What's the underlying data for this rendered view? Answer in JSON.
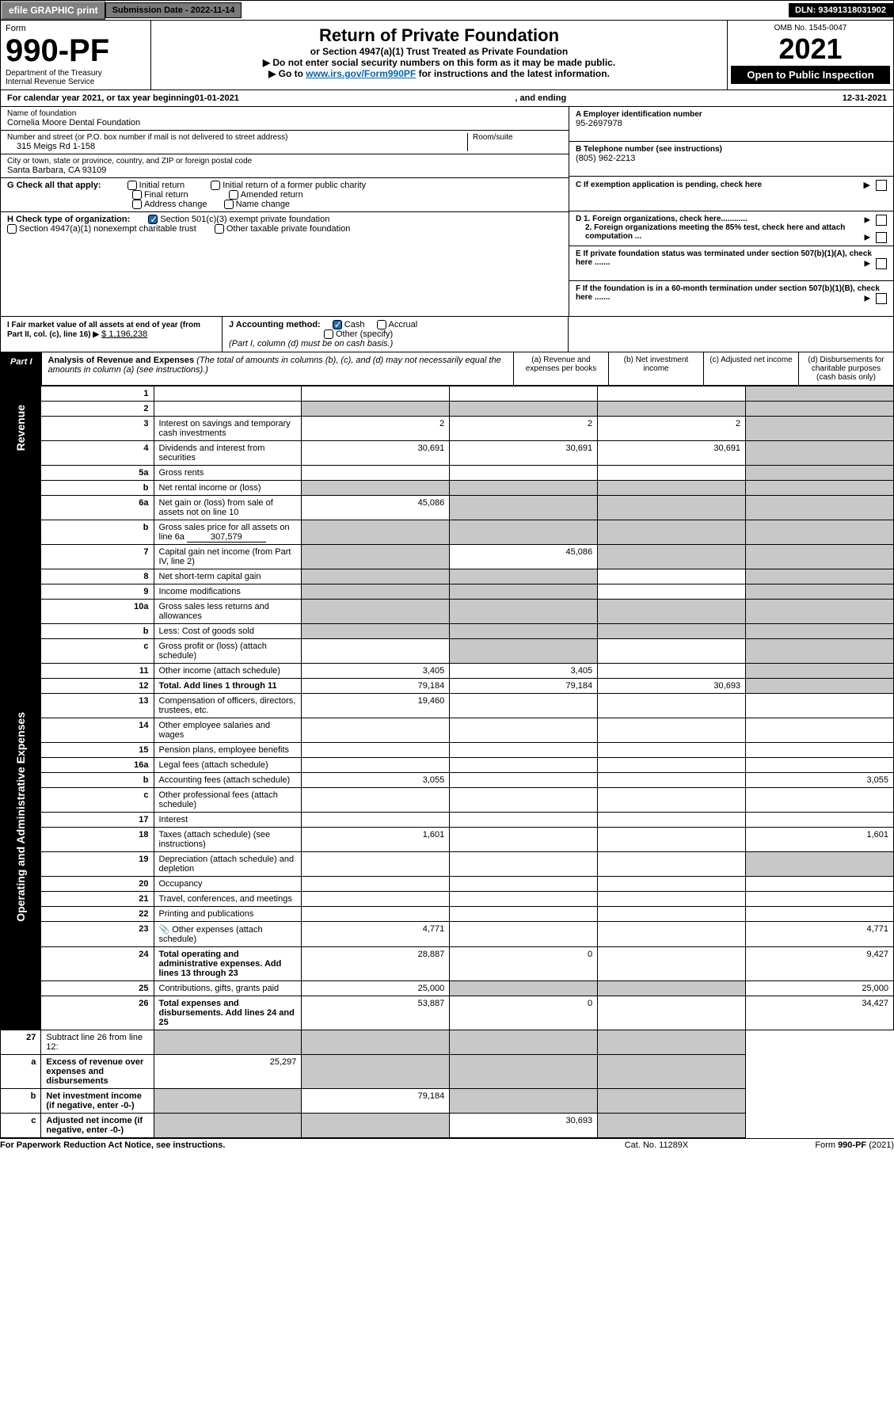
{
  "topbar": {
    "efile": "efile GRAPHIC print",
    "subdate_label": "Submission Date - ",
    "subdate": "2022-11-14",
    "dln_label": "DLN: ",
    "dln": "93491318031902"
  },
  "header": {
    "form_label": "Form",
    "form_no": "990-PF",
    "dept1": "Department of the Treasury",
    "dept2": "Internal Revenue Service",
    "title": "Return of Private Foundation",
    "subtitle": "or Section 4947(a)(1) Trust Treated as Private Foundation",
    "note1": "▶ Do not enter social security numbers on this form as it may be made public.",
    "note2_pre": "▶ Go to ",
    "note2_link": "www.irs.gov/Form990PF",
    "note2_post": " for instructions and the latest information.",
    "omb": "OMB No. 1545-0047",
    "year": "2021",
    "inspect": "Open to Public Inspection"
  },
  "calendar": {
    "pre": "For calendar year 2021, or tax year beginning ",
    "begin": "01-01-2021",
    "mid": ", and ending ",
    "end": "12-31-2021"
  },
  "ident": {
    "name_label": "Name of foundation",
    "name": "Cornelia Moore Dental Foundation",
    "addr_label": "Number and street (or P.O. box number if mail is not delivered to street address)",
    "addr": "315 Meigs Rd 1-158",
    "room_label": "Room/suite",
    "city_label": "City or town, state or province, country, and ZIP or foreign postal code",
    "city": "Santa Barbara, CA  93109",
    "ein_label": "A Employer identification number",
    "ein": "95-2697978",
    "tel_label": "B Telephone number (see instructions)",
    "tel": "(805) 962-2213",
    "c_label": "C If exemption application is pending, check here",
    "d1": "D 1. Foreign organizations, check here............",
    "d2": "2. Foreign organizations meeting the 85% test, check here and attach computation ...",
    "e": "E  If private foundation status was terminated under section 507(b)(1)(A), check here .......",
    "f": "F  If the foundation is in a 60-month termination under section 507(b)(1)(B), check here .......",
    "g_label": "G Check all that apply:",
    "g_opts": [
      "Initial return",
      "Initial return of a former public charity",
      "Final return",
      "Amended return",
      "Address change",
      "Name change"
    ],
    "h_label": "H Check type of organization:",
    "h_opts": [
      "Section 501(c)(3) exempt private foundation",
      "Section 4947(a)(1) nonexempt charitable trust",
      "Other taxable private foundation"
    ],
    "i_label": "I Fair market value of all assets at end of year (from Part II, col. (c), line 16) ▶",
    "i_val": "$  1,196,238",
    "j_label": "J Accounting method:",
    "j_cash": "Cash",
    "j_accrual": "Accrual",
    "j_other": "Other (specify)",
    "j_note": "(Part I, column (d) must be on cash basis.)"
  },
  "part1": {
    "label": "Part I",
    "title": "Analysis of Revenue and Expenses",
    "desc": " (The total of amounts in columns (b), (c), and (d) may not necessarily equal the amounts in column (a) (see instructions).)",
    "col_a": "(a) Revenue and expenses per books",
    "col_b": "(b) Net investment income",
    "col_c": "(c) Adjusted net income",
    "col_d": "(d) Disbursements for charitable purposes (cash basis only)"
  },
  "vlabels": {
    "rev": "Revenue",
    "exp": "Operating and Administrative Expenses"
  },
  "rows": [
    {
      "n": "1",
      "d": "",
      "a": "",
      "b": "",
      "c": "",
      "ds": true
    },
    {
      "n": "2",
      "d": "",
      "bold2": true,
      "a": "",
      "b": "",
      "c": "",
      "ds": true,
      "sa": true,
      "sb": true,
      "sc": true
    },
    {
      "n": "3",
      "d": "Interest on savings and temporary cash investments",
      "a": "2",
      "b": "2",
      "c": "2",
      "ds": true
    },
    {
      "n": "4",
      "d": "Dividends and interest from securities",
      "a": "30,691",
      "b": "30,691",
      "c": "30,691",
      "ds": true
    },
    {
      "n": "5a",
      "d": "Gross rents",
      "a": "",
      "b": "",
      "c": "",
      "ds": true
    },
    {
      "n": "b",
      "d": "Net rental income or (loss)",
      "a": "",
      "b": "",
      "c": "",
      "ds": true,
      "sa": true,
      "sb": true,
      "sc": true,
      "inline": true
    },
    {
      "n": "6a",
      "d": "Net gain or (loss) from sale of assets not on line 10",
      "a": "45,086",
      "b": "",
      "c": "",
      "ds": true,
      "sb": true,
      "sc": true
    },
    {
      "n": "b",
      "d": "Gross sales price for all assets on line 6a",
      "inline_val": "307,579",
      "ds": true,
      "sa": true,
      "sb": true,
      "sc": true
    },
    {
      "n": "7",
      "d": "Capital gain net income (from Part IV, line 2)",
      "a": "",
      "b": "45,086",
      "c": "",
      "ds": true,
      "sa": true,
      "sc": true
    },
    {
      "n": "8",
      "d": "Net short-term capital gain",
      "a": "",
      "b": "",
      "c": "",
      "ds": true,
      "sa": true,
      "sb": true
    },
    {
      "n": "9",
      "d": "Income modifications",
      "a": "",
      "b": "",
      "c": "",
      "ds": true,
      "sa": true,
      "sb": true
    },
    {
      "n": "10a",
      "d": "Gross sales less returns and allowances",
      "inline": true,
      "ds": true,
      "sa": true,
      "sb": true,
      "sc": true
    },
    {
      "n": "b",
      "d": "Less: Cost of goods sold",
      "inline": true,
      "ds": true,
      "sa": true,
      "sb": true,
      "sc": true
    },
    {
      "n": "c",
      "d": "Gross profit or (loss) (attach schedule)",
      "a": "",
      "b": "",
      "c": "",
      "ds": true,
      "sb": true
    },
    {
      "n": "11",
      "d": "Other income (attach schedule)",
      "a": "3,405",
      "b": "3,405",
      "c": "",
      "ds": true
    },
    {
      "n": "12",
      "d": "Total. Add lines 1 through 11",
      "bold": true,
      "a": "79,184",
      "b": "79,184",
      "c": "30,693",
      "ds": true
    }
  ],
  "rows_exp": [
    {
      "n": "13",
      "d": "Compensation of officers, directors, trustees, etc.",
      "a": "19,460",
      "b": "",
      "c": "",
      "dd": ""
    },
    {
      "n": "14",
      "d": "Other employee salaries and wages",
      "a": "",
      "b": "",
      "c": "",
      "dd": ""
    },
    {
      "n": "15",
      "d": "Pension plans, employee benefits",
      "a": "",
      "b": "",
      "c": "",
      "dd": ""
    },
    {
      "n": "16a",
      "d": "Legal fees (attach schedule)",
      "a": "",
      "b": "",
      "c": "",
      "dd": ""
    },
    {
      "n": "b",
      "d": "Accounting fees (attach schedule)",
      "a": "3,055",
      "b": "",
      "c": "",
      "dd": "3,055"
    },
    {
      "n": "c",
      "d": "Other professional fees (attach schedule)",
      "a": "",
      "b": "",
      "c": "",
      "dd": ""
    },
    {
      "n": "17",
      "d": "Interest",
      "a": "",
      "b": "",
      "c": "",
      "dd": ""
    },
    {
      "n": "18",
      "d": "Taxes (attach schedule) (see instructions)",
      "a": "1,601",
      "b": "",
      "c": "",
      "dd": "1,601"
    },
    {
      "n": "19",
      "d": "Depreciation (attach schedule) and depletion",
      "a": "",
      "b": "",
      "c": "",
      "ds": true
    },
    {
      "n": "20",
      "d": "Occupancy",
      "a": "",
      "b": "",
      "c": "",
      "dd": ""
    },
    {
      "n": "21",
      "d": "Travel, conferences, and meetings",
      "a": "",
      "b": "",
      "c": "",
      "dd": ""
    },
    {
      "n": "22",
      "d": "Printing and publications",
      "a": "",
      "b": "",
      "c": "",
      "dd": ""
    },
    {
      "n": "23",
      "d": "Other expenses (attach schedule)",
      "icon": true,
      "a": "4,771",
      "b": "",
      "c": "",
      "dd": "4,771"
    },
    {
      "n": "24",
      "d": "Total operating and administrative expenses. Add lines 13 through 23",
      "bold": true,
      "a": "28,887",
      "b": "0",
      "c": "",
      "dd": "9,427"
    },
    {
      "n": "25",
      "d": "Contributions, gifts, grants paid",
      "a": "25,000",
      "b": "",
      "c": "",
      "dd": "25,000",
      "sb": true,
      "sc": true
    },
    {
      "n": "26",
      "d": "Total expenses and disbursements. Add lines 24 and 25",
      "bold": true,
      "a": "53,887",
      "b": "0",
      "c": "",
      "dd": "34,427"
    }
  ],
  "rows_bot": [
    {
      "n": "27",
      "d": "Subtract line 26 from line 12:",
      "sa": true,
      "sb": true,
      "sc": true,
      "ds": true
    },
    {
      "n": "a",
      "d": "Excess of revenue over expenses and disbursements",
      "bold": true,
      "a": "25,297",
      "sb": true,
      "sc": true,
      "ds": true
    },
    {
      "n": "b",
      "d": "Net investment income (if negative, enter -0-)",
      "bold": true,
      "b": "79,184",
      "sa": true,
      "sc": true,
      "ds": true
    },
    {
      "n": "c",
      "d": "Adjusted net income (if negative, enter -0-)",
      "bold": true,
      "c": "30,693",
      "sa": true,
      "sb": true,
      "ds": true
    }
  ],
  "footer": {
    "left": "For Paperwork Reduction Act Notice, see instructions.",
    "mid": "Cat. No. 11289X",
    "right": "Form 990-PF (2021)"
  }
}
